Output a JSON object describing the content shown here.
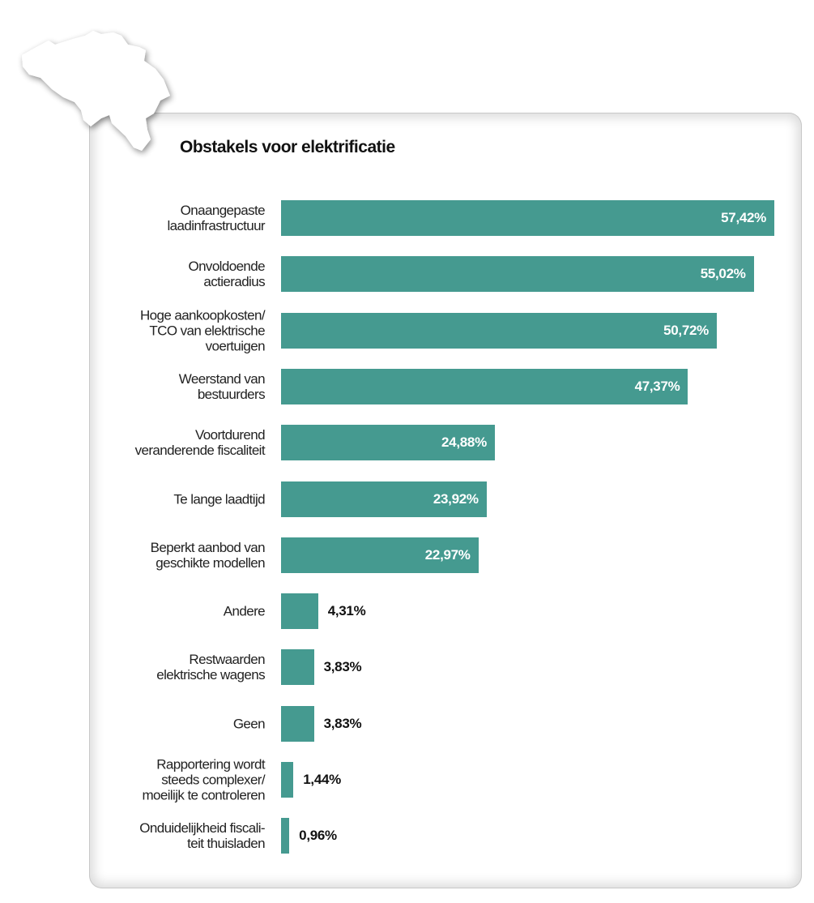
{
  "chart_data": {
    "type": "bar",
    "orientation": "horizontal",
    "title": "Obstakels voor elektrificatie",
    "xlabel": "",
    "ylabel": "",
    "xlim": [
      0,
      57.42
    ],
    "grid": false,
    "bar_color": "#459a90",
    "categories": [
      "Onaangepaste laadinfrastructuur",
      "Onvoldoende actieradius",
      "Hoge aankoopkosten/ TCO van elektrische voertuigen",
      "Weerstand van bestuurders",
      "Voortdurend veranderende fiscaliteit",
      "Te lange laadtijd",
      "Beperkt aanbod van geschikte modellen",
      "Andere",
      "Restwaarden elektrische wagens",
      "Geen",
      "Rapportering wordt steeds complexer/ moeilijk te controleren",
      "Onduidelijkheid fiscali-teit thuisladen"
    ],
    "label_lines": [
      [
        "Onaangepaste",
        "laadinfrastructuur"
      ],
      [
        "Onvoldoende",
        "actieradius"
      ],
      [
        "Hoge aankoopkosten/",
        "TCO van elektrische",
        "voertuigen"
      ],
      [
        "Weerstand van",
        "bestuurders"
      ],
      [
        "Voortdurend",
        "veranderende fiscaliteit"
      ],
      [
        "Te lange laadtijd"
      ],
      [
        "Beperkt aanbod van",
        "geschikte modellen"
      ],
      [
        "Andere"
      ],
      [
        "Restwaarden",
        "elektrische wagens"
      ],
      [
        "Geen"
      ],
      [
        "Rapportering wordt",
        "steeds complexer/",
        "moeilijk te controleren"
      ],
      [
        "Onduidelijkheid fiscali-",
        "teit thuisladen"
      ]
    ],
    "values": [
      57.42,
      55.02,
      50.72,
      47.37,
      24.88,
      23.92,
      22.97,
      4.31,
      3.83,
      3.83,
      1.44,
      0.96
    ],
    "data_labels": [
      "57,42%",
      "55,02%",
      "50,72%",
      "47,37%",
      "24,88%",
      "23,92%",
      "22,97%",
      "4,31%",
      "3,83%",
      "3,83%",
      "1,44%",
      "0,96%"
    ]
  },
  "map_icon": "belgium-map-icon"
}
